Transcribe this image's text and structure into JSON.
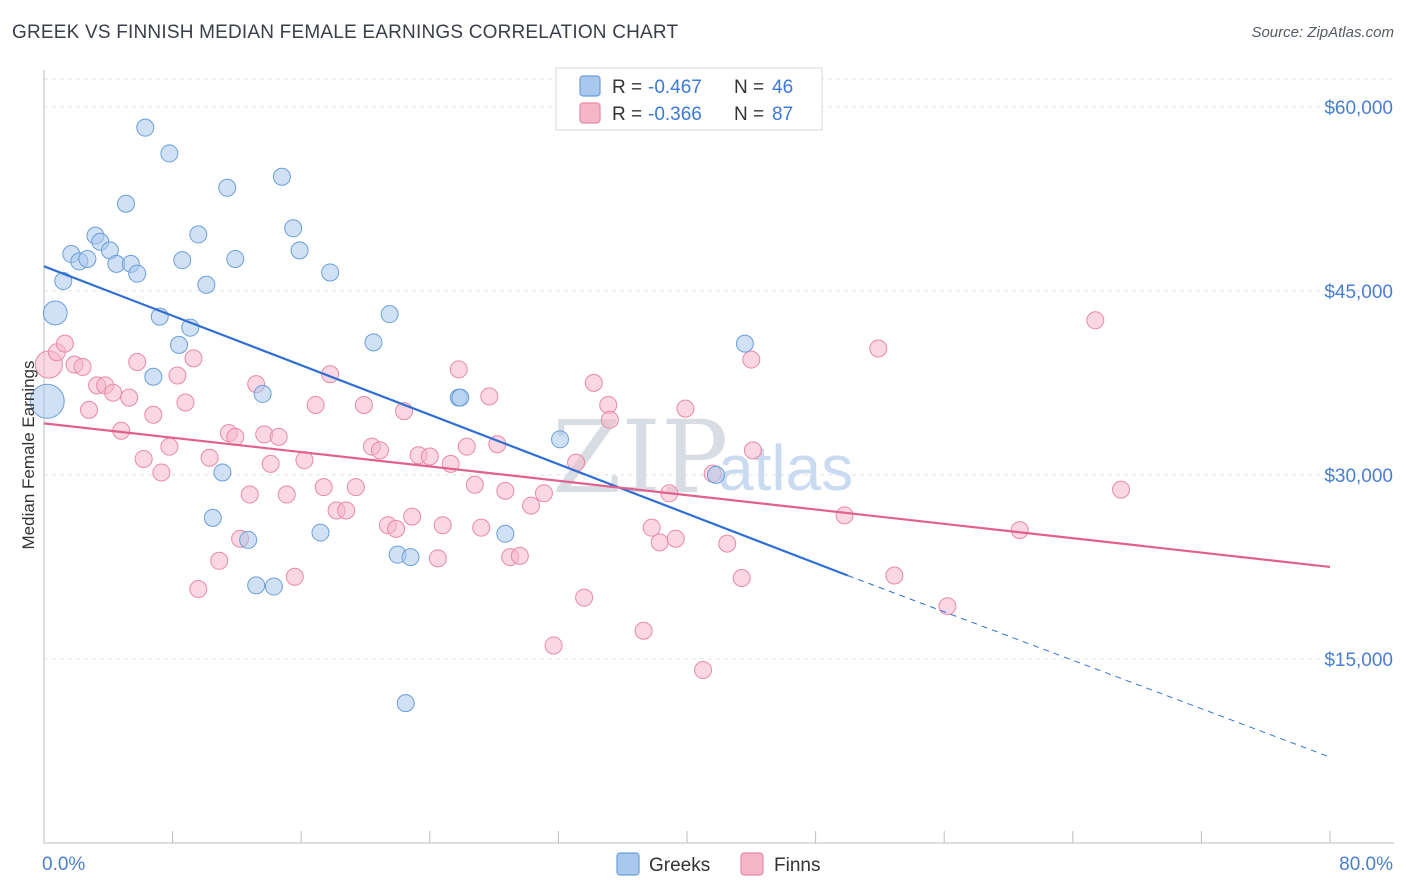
{
  "title": "GREEK VS FINNISH MEDIAN FEMALE EARNINGS CORRELATION CHART",
  "source": "Source: ZipAtlas.com",
  "watermark": {
    "part1": "ZIP",
    "part2": "atlas"
  },
  "legend": {
    "rows": [
      {
        "r_label": "R = ",
        "r_value": "-0.467",
        "n_label": "N = ",
        "n_value": "46",
        "color": "#a9c8ee"
      },
      {
        "r_label": "R = ",
        "r_value": "-0.366",
        "n_label": "N = ",
        "n_value": "87",
        "color": "#f5b6ca"
      }
    ]
  },
  "bottom_legend": [
    {
      "label": "Greeks",
      "color": "#a9c8ee"
    },
    {
      "label": "Finns",
      "color": "#f5b6ca"
    }
  ],
  "chart_data": {
    "type": "scatter",
    "title": "GREEK VS FINNISH MEDIAN FEMALE EARNINGS CORRELATION CHART",
    "xlabel": "",
    "ylabel": "Median Female Earnings",
    "xlim": [
      0,
      80
    ],
    "ylim": [
      0,
      63000
    ],
    "x_tick_labels": [
      "0.0%",
      "80.0%"
    ],
    "y_ticks": [
      15000,
      30000,
      45000,
      60000
    ],
    "y_tick_labels": [
      "$15,000",
      "$30,000",
      "$45,000",
      "$60,000"
    ],
    "grid": true,
    "legend_position": "top-center",
    "series": [
      {
        "name": "Greeks",
        "color": "#a9c8ee",
        "stroke": "#6a9fd8",
        "points": [
          [
            0.2,
            36000,
            2
          ],
          [
            0.7,
            43200,
            1.4
          ],
          [
            1.2,
            45800,
            1
          ],
          [
            1.7,
            48000,
            1
          ],
          [
            2.2,
            47400,
            1
          ],
          [
            2.7,
            47600,
            1
          ],
          [
            3.2,
            49500,
            1
          ],
          [
            3.5,
            49000,
            1
          ],
          [
            4.1,
            48300,
            1
          ],
          [
            4.5,
            47200,
            1
          ],
          [
            5.1,
            52100,
            1
          ],
          [
            5.4,
            47200,
            1
          ],
          [
            5.8,
            46400,
            1
          ],
          [
            6.3,
            58300,
            1
          ],
          [
            6.8,
            38000,
            1
          ],
          [
            7.2,
            42900,
            1
          ],
          [
            7.8,
            56200,
            1
          ],
          [
            8.4,
            40600,
            1
          ],
          [
            8.6,
            47500,
            1
          ],
          [
            9.1,
            42000,
            1
          ],
          [
            9.6,
            49600,
            1
          ],
          [
            10.1,
            45500,
            1
          ],
          [
            10.5,
            26500,
            1
          ],
          [
            11.1,
            30200,
            1
          ],
          [
            11.4,
            53400,
            1
          ],
          [
            11.9,
            47600,
            1
          ],
          [
            12.7,
            24700,
            1
          ],
          [
            13.2,
            21000,
            1
          ],
          [
            13.6,
            36600,
            1
          ],
          [
            14.3,
            20900,
            1
          ],
          [
            14.8,
            54300,
            1
          ],
          [
            15.5,
            50100,
            1
          ],
          [
            15.9,
            48300,
            1
          ],
          [
            17.2,
            25300,
            1
          ],
          [
            17.8,
            46500,
            1
          ],
          [
            20.5,
            40800,
            1
          ],
          [
            21.5,
            43100,
            1
          ],
          [
            22.0,
            23500,
            1
          ],
          [
            22.8,
            23300,
            1
          ],
          [
            22.5,
            11400,
            1
          ],
          [
            25.8,
            36300,
            1
          ],
          [
            25.9,
            36300,
            1
          ],
          [
            28.7,
            25200,
            1
          ],
          [
            32.1,
            32900,
            1
          ],
          [
            41.8,
            30000,
            1
          ],
          [
            43.6,
            40700,
            1
          ]
        ],
        "trend": {
          "x1": 0,
          "y1": 47000,
          "x2": 50,
          "y2": 21800,
          "dash_to_x": 80,
          "dash_to_y": 7000
        }
      },
      {
        "name": "Finns",
        "color": "#f5b6ca",
        "stroke": "#e88aa8",
        "points": [
          [
            0.3,
            39000,
            1.6
          ],
          [
            0.8,
            40000,
            1
          ],
          [
            1.3,
            40700,
            1
          ],
          [
            1.9,
            39000,
            1
          ],
          [
            2.4,
            38800,
            1
          ],
          [
            2.8,
            35300,
            1
          ],
          [
            3.3,
            37300,
            1
          ],
          [
            3.8,
            37300,
            1
          ],
          [
            4.3,
            36700,
            1
          ],
          [
            4.8,
            33600,
            1
          ],
          [
            5.3,
            36300,
            1
          ],
          [
            5.8,
            39200,
            1
          ],
          [
            6.2,
            31300,
            1
          ],
          [
            6.8,
            34900,
            1
          ],
          [
            7.3,
            30200,
            1
          ],
          [
            7.8,
            32300,
            1
          ],
          [
            8.3,
            38100,
            1
          ],
          [
            8.8,
            35900,
            1
          ],
          [
            9.3,
            39500,
            1
          ],
          [
            9.6,
            20700,
            1
          ],
          [
            10.3,
            31400,
            1
          ],
          [
            10.9,
            23000,
            1
          ],
          [
            11.5,
            33400,
            1
          ],
          [
            11.9,
            33100,
            1
          ],
          [
            12.2,
            24800,
            1
          ],
          [
            12.8,
            28400,
            1
          ],
          [
            13.2,
            37400,
            1
          ],
          [
            13.7,
            33300,
            1
          ],
          [
            14.1,
            30900,
            1
          ],
          [
            14.6,
            33100,
            1
          ],
          [
            15.1,
            28400,
            1
          ],
          [
            15.6,
            21700,
            1
          ],
          [
            16.2,
            31200,
            1
          ],
          [
            16.9,
            35700,
            1
          ],
          [
            17.4,
            29000,
            1
          ],
          [
            17.8,
            38200,
            1
          ],
          [
            18.2,
            27100,
            1
          ],
          [
            18.8,
            27100,
            1
          ],
          [
            19.4,
            29000,
            1
          ],
          [
            19.9,
            35700,
            1
          ],
          [
            20.4,
            32300,
            1
          ],
          [
            20.9,
            32000,
            1
          ],
          [
            21.4,
            25900,
            1
          ],
          [
            21.9,
            25600,
            1
          ],
          [
            22.4,
            35200,
            1
          ],
          [
            22.9,
            26600,
            1
          ],
          [
            23.3,
            31600,
            1
          ],
          [
            24.0,
            31500,
            1
          ],
          [
            24.5,
            23200,
            1
          ],
          [
            24.8,
            25900,
            1
          ],
          [
            25.3,
            30900,
            1
          ],
          [
            25.8,
            38600,
            1
          ],
          [
            26.3,
            32300,
            1
          ],
          [
            26.8,
            29200,
            1
          ],
          [
            27.2,
            25700,
            1
          ],
          [
            27.7,
            36400,
            1
          ],
          [
            28.2,
            32500,
            1
          ],
          [
            28.7,
            28700,
            1
          ],
          [
            29.0,
            23300,
            1
          ],
          [
            29.6,
            23400,
            1
          ],
          [
            30.3,
            27500,
            1
          ],
          [
            31.1,
            28500,
            1
          ],
          [
            31.7,
            16100,
            1
          ],
          [
            33.1,
            31000,
            1
          ],
          [
            33.6,
            20000,
            1
          ],
          [
            34.2,
            37500,
            1
          ],
          [
            35.1,
            35700,
            1
          ],
          [
            35.2,
            34500,
            1
          ],
          [
            37.3,
            17300,
            1
          ],
          [
            37.8,
            25700,
            1
          ],
          [
            38.3,
            24500,
            1
          ],
          [
            38.9,
            28500,
            1
          ],
          [
            39.3,
            24800,
            1
          ],
          [
            39.9,
            35400,
            1
          ],
          [
            41.0,
            14100,
            1
          ],
          [
            41.6,
            30100,
            1
          ],
          [
            42.5,
            24400,
            1
          ],
          [
            43.4,
            21600,
            1
          ],
          [
            44.0,
            39400,
            1
          ],
          [
            44.1,
            32000,
            1
          ],
          [
            49.8,
            26700,
            1
          ],
          [
            51.9,
            40300,
            1
          ],
          [
            52.9,
            21800,
            1
          ],
          [
            56.2,
            19300,
            1
          ],
          [
            60.7,
            25500,
            1
          ],
          [
            65.4,
            42600,
            1
          ],
          [
            67.0,
            28800,
            1
          ]
        ],
        "trend": {
          "x1": 0,
          "y1": 34200,
          "x2": 80,
          "y2": 22500
        }
      }
    ]
  }
}
